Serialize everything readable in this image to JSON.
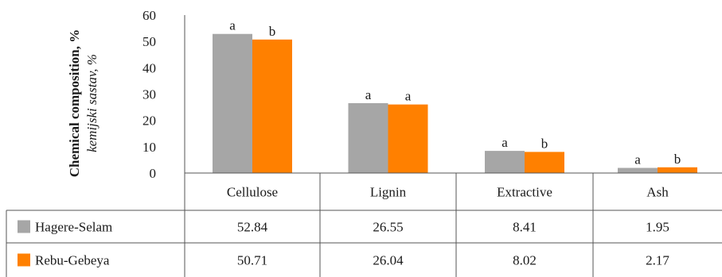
{
  "chart_data": {
    "type": "bar",
    "ylabel": "Chemical composition, %",
    "ylabel_translation": "kemijski sastav, %",
    "ylim": [
      0,
      60
    ],
    "yticks": [
      "0",
      "10",
      "20",
      "30",
      "40",
      "50",
      "60"
    ],
    "categories": [
      "Cellulose",
      "Lignin",
      "Extractive",
      "Ash"
    ],
    "series": [
      {
        "name": "Hagere-Selam",
        "color": "#a6a6a6",
        "values": [
          52.84,
          26.55,
          8.41,
          1.95
        ],
        "value_labels": [
          "52.84",
          "26.55",
          "8.41",
          "1.95"
        ],
        "significance": [
          "a",
          "a",
          "a",
          "a"
        ]
      },
      {
        "name": "Rebu-Gebeya",
        "color": "#ff8000",
        "values": [
          50.71,
          26.04,
          8.02,
          2.17
        ],
        "value_labels": [
          "50.71",
          "26.04",
          "8.02",
          "2.17"
        ],
        "significance": [
          "b",
          "a",
          "b",
          "b"
        ]
      }
    ],
    "grid": false,
    "legend": "data-table"
  }
}
